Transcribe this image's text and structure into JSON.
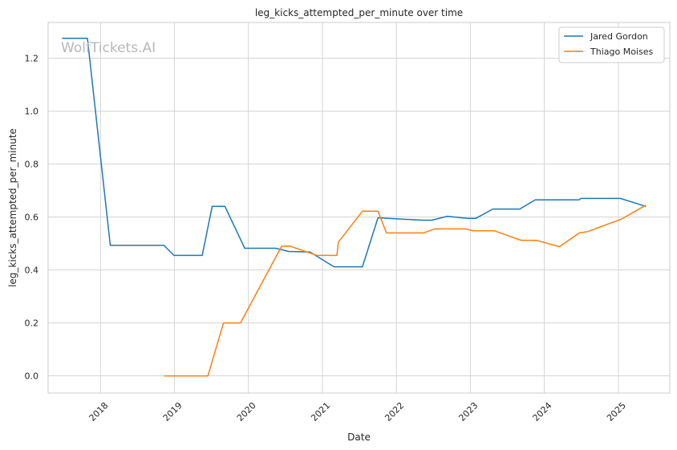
{
  "watermark": "WolfTickets.AI",
  "chart_data": {
    "type": "line",
    "title": "leg_kicks_attempted_per_minute over time",
    "xlabel": "Date",
    "ylabel": "leg_kicks_attempted_per_minute",
    "x_tick_labels": [
      "2018",
      "2019",
      "2020",
      "2021",
      "2022",
      "2023",
      "2024",
      "2025"
    ],
    "y_ticks": [
      0.0,
      0.2,
      0.4,
      0.6,
      0.8,
      1.0,
      1.2
    ],
    "y_tick_labels": [
      "0.0",
      "0.2",
      "0.4",
      "0.6",
      "0.8",
      "1.0",
      "1.2"
    ],
    "xlim": [
      "2017-04-17",
      "2025-09-12"
    ],
    "ylim": [
      -0.065,
      1.335
    ],
    "grid": true,
    "legend_position": "top-right",
    "series": [
      {
        "name": "Jared Gordon",
        "color": "#1f77b4",
        "points": [
          [
            "2017-06-25",
            1.275
          ],
          [
            "2017-10-28",
            1.275
          ],
          [
            "2018-02-18",
            0.493
          ],
          [
            "2018-11-10",
            0.493
          ],
          [
            "2018-12-29",
            0.455
          ],
          [
            "2019-05-18",
            0.455
          ],
          [
            "2019-07-06",
            0.64
          ],
          [
            "2019-09-07",
            0.64
          ],
          [
            "2019-12-14",
            0.482
          ],
          [
            "2020-05-16",
            0.482
          ],
          [
            "2020-07-18",
            0.47
          ],
          [
            "2020-10-31",
            0.468
          ],
          [
            "2021-02-27",
            0.412
          ],
          [
            "2021-07-17",
            0.412
          ],
          [
            "2021-10-02",
            0.597
          ],
          [
            "2022-05-07",
            0.588
          ],
          [
            "2022-06-25",
            0.588
          ],
          [
            "2022-09-10",
            0.603
          ],
          [
            "2022-12-17",
            0.595
          ],
          [
            "2023-01-28",
            0.595
          ],
          [
            "2023-04-22",
            0.63
          ],
          [
            "2023-09-02",
            0.63
          ],
          [
            "2023-11-18",
            0.665
          ],
          [
            "2024-06-22",
            0.665
          ],
          [
            "2024-06-29",
            0.67
          ],
          [
            "2025-01-11",
            0.67
          ],
          [
            "2025-05-17",
            0.64
          ]
        ]
      },
      {
        "name": "Thiago Moises",
        "color": "#ff7f0e",
        "points": [
          [
            "2018-11-10",
            0.0
          ],
          [
            "2019-06-15",
            0.0
          ],
          [
            "2019-08-31",
            0.2
          ],
          [
            "2019-11-23",
            0.2
          ],
          [
            "2020-06-13",
            0.49
          ],
          [
            "2020-07-25",
            0.49
          ],
          [
            "2020-12-05",
            0.455
          ],
          [
            "2021-03-13",
            0.455
          ],
          [
            "2021-03-20",
            0.505
          ],
          [
            "2021-07-17",
            0.622
          ],
          [
            "2021-10-02",
            0.622
          ],
          [
            "2021-11-13",
            0.54
          ],
          [
            "2022-05-14",
            0.54
          ],
          [
            "2022-07-09",
            0.555
          ],
          [
            "2022-12-10",
            0.555
          ],
          [
            "2023-01-14",
            0.548
          ],
          [
            "2023-04-29",
            0.548
          ],
          [
            "2023-09-09",
            0.512
          ],
          [
            "2023-11-25",
            0.512
          ],
          [
            "2024-03-16",
            0.488
          ],
          [
            "2024-06-22",
            0.54
          ],
          [
            "2024-08-03",
            0.545
          ],
          [
            "2025-01-18",
            0.593
          ],
          [
            "2025-05-17",
            0.645
          ]
        ]
      }
    ]
  }
}
